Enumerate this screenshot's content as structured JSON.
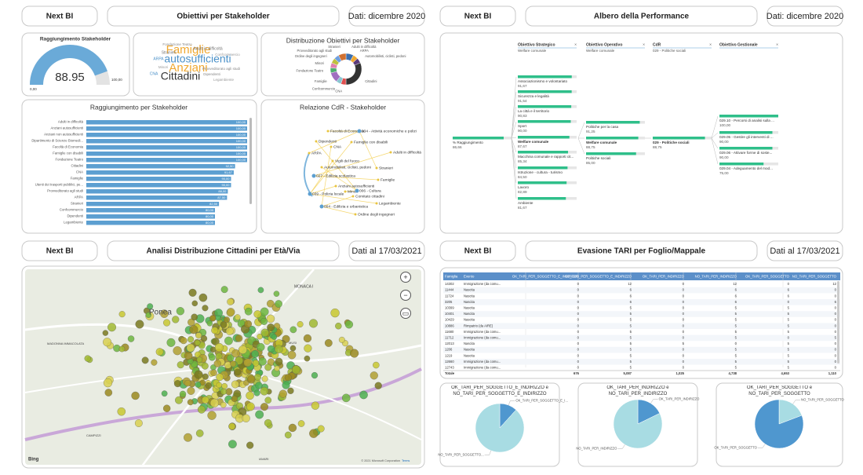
{
  "headers": [
    {
      "nav": "Next BI",
      "title": "Obiettivi per Stakeholder",
      "date": "Dati: dicembre 2020"
    },
    {
      "nav": "Next BI",
      "title": "Albero della Performance",
      "date": "Dati: dicembre 2020"
    },
    {
      "nav": "Next BI",
      "title": "Analisi Distribuzione Cittadini per Età/Via",
      "date": "Dati al 17/03/2021"
    },
    {
      "nav": "Next BI",
      "title": "Evasione TARI per Foglio/Mappale",
      "date": "Dati al 17/03/2021"
    }
  ],
  "chart_data": [
    {
      "type": "gauge",
      "title": "Raggiungimento Stakeholder",
      "value": 88.95,
      "ylim": [
        0,
        100
      ],
      "yticks": [
        {
          "value": 0,
          "label": "0,00"
        },
        {
          "value": 100,
          "label": "100,00"
        }
      ],
      "color": "#6aaad8"
    },
    {
      "type": "wordcloud",
      "words": [
        "Famiglie",
        "autosufficienti",
        "Anziani",
        "Cittadini",
        "Stranieri",
        "Adulti in difficoltà",
        "ARPA",
        "Fondazione Teatro",
        "Provveditorato agli studi",
        "Minori",
        "Legambiente",
        "CNA",
        "Dipendenti",
        "Confcommercio"
      ],
      "colors": [
        "#f0a830",
        "#4a90c8",
        "#f0a830",
        "#333333",
        "#777777",
        "#777777",
        "#4a90c8",
        "#888888",
        "#888888",
        "#999999",
        "#999999",
        "#4a90c8",
        "#888888",
        "#999999"
      ]
    },
    {
      "type": "donut",
      "title": "Distribuzione Obiettivi per Stakeholder",
      "categories": [
        "Adulti in difficoltà",
        "ARPA",
        "Automobilisti, ciclisti, pedoni",
        "Cittadini",
        "CNA",
        "Confcommercio",
        "Famiglie",
        "Fondazione Teatro",
        "Minori",
        "Ordine degli ingegneri",
        "Provveditorato agli studi",
        "Stranieri"
      ],
      "values": [
        3,
        2,
        2,
        12,
        2,
        2,
        4,
        2,
        2,
        2,
        2,
        3
      ],
      "colors": [
        "#3a6fb0",
        "#f0a830",
        "#5a3a7a",
        "#333333",
        "#e05050",
        "#8ac6d1",
        "#a070c0",
        "#50b070",
        "#e080b0",
        "#c0c040",
        "#70a0e0",
        "#d07030"
      ]
    },
    {
      "type": "bar",
      "orientation": "horizontal",
      "title": "Raggiungimento per Stakeholder",
      "categories": [
        "Adulti in difficoltà",
        "Anziani autosufficienti",
        "Anziani non autosufficienti",
        "Dipartimento di Scienze Biomedi...",
        "Facoltà di Economia",
        "Famiglie con disabili",
        "Fondazione Teatro",
        "Cittadini",
        "CNA",
        "Famiglie",
        "Utenti dei trasporti pubblici, pe...",
        "Provveditorato agli studi",
        "ARPA",
        "Stranieri",
        "Confcommercio",
        "Dipendenti",
        "Legambiente"
      ],
      "values": [
        100,
        100,
        100,
        100,
        100,
        100,
        100,
        92.5,
        91.67,
        90,
        90,
        88,
        87.5,
        82.5,
        80,
        80,
        80
      ],
      "value_labels": [
        "100,00",
        "100,00",
        "100,00",
        "100,00",
        "100,00",
        "100,00",
        "100,00",
        "92,50",
        "91,67",
        "90,00",
        "90,00",
        "88,00",
        "87,50",
        "82,50",
        "80,00",
        "80,00",
        "80,00"
      ],
      "xlim": [
        0,
        100
      ],
      "color": "#5c9fd1"
    },
    {
      "type": "network",
      "title": "Relazione CdR - Stakeholder",
      "nodes": [
        "Facoltà di Economia",
        "034 - Attività economiche e polizi",
        "Famiglie con disabili",
        "Dipendenti",
        "CNA",
        "ARPA",
        "Adulti in difficoltà",
        "Vigili del fuoco",
        "Automobilisti, ciclisti, pedoni",
        "027 - Edilizia scolastica",
        "Stranieri",
        "Famiglie",
        "Anziani autosufficienti",
        "Minori",
        "Comitato cittadini",
        "039 - Polizia locale",
        "006 - Cultura",
        "Legambiente",
        "004 - Edilizia e urbanistica",
        "Ordine degli ingegneri"
      ]
    },
    {
      "type": "decomposition_tree",
      "columns": [
        {
          "title": "Obiettivo Strategico",
          "value": "Welfare comunale"
        },
        {
          "title": "Obiettivo Operativo",
          "value": "Welfare comunale"
        },
        {
          "title": "CdR",
          "value": "029 - Politiche sociali"
        },
        {
          "title": "Obiettivo Gestionale"
        }
      ],
      "root": {
        "label": "% Raggiungimento",
        "value": 86.66,
        "value_label": "86,66"
      },
      "levels": [
        [
          {
            "label": "Associazionismo e volontariato",
            "value": 91.67,
            "value_label": "91,67"
          },
          {
            "label": "Sicurezza e legalità",
            "value": 91.54,
            "value_label": "91,54"
          },
          {
            "label": "La città e il territorio",
            "value": 90.83,
            "value_label": "90,83"
          },
          {
            "label": "Sport",
            "value": 90,
            "value_label": "90,00"
          },
          {
            "label": "Welfare comunale",
            "value": 87.67,
            "value_label": "87,67"
          },
          {
            "label": "Macchina comunale e rapporti cit...",
            "value": 85.34,
            "value_label": "85,34"
          },
          {
            "label": "Istruzione - cultura - turismo",
            "value": 84.5,
            "value_label": "84,50"
          },
          {
            "label": "Lavoro",
            "value": 82.89,
            "value_label": "82,89"
          },
          {
            "label": "Ambiente",
            "value": 81.67,
            "value_label": "81,67"
          }
        ],
        [
          {
            "label": "Politiche per la casa",
            "value": 91.25,
            "value_label": "91,25"
          },
          {
            "label": "Welfare comunale",
            "value": 88.75,
            "value_label": "88,75"
          },
          {
            "label": "Politiche sociali",
            "value": 85,
            "value_label": "85,00"
          }
        ],
        [
          {
            "label": "029 - Politiche sociali",
            "value": 88.75,
            "value_label": "88,75"
          }
        ],
        [
          {
            "label": "029.10 - Percorsi di analisi sulla ...",
            "value": 100,
            "value_label": "100,00"
          },
          {
            "label": "029.05 - Gestire gli interventi di ...",
            "value": 90,
            "value_label": "90,00"
          },
          {
            "label": "029.06 - Attivare forme di soste...",
            "value": 90,
            "value_label": "90,00"
          },
          {
            "label": "029.04 - Adeguamento del mod...",
            "value": 75,
            "value_label": "75,00"
          }
        ]
      ],
      "xlim": [
        0,
        100
      ],
      "color": "#2fbf8a"
    },
    {
      "type": "pie",
      "title": "OK_TARI_PER_SOGGETTO_E_INDIRIZZO e NO_TARI_PER_SOGGETTO_E_INDIRIZZO",
      "labels": [
        "OK_TARI_PER_SOGGETTO_E_I...",
        "NO_TARI_PER_SOGGETTO..."
      ],
      "values": [
        676,
        5087
      ],
      "colors": [
        "#4f97cf",
        "#a8dce3"
      ]
    },
    {
      "type": "pie",
      "title": "OK_TARI_PER_INDIRIZZO e NO_TARI_PER_INDIRIZZO",
      "labels": [
        "OK_TARI_PER_INDIRIZZO",
        "NO_TARI_PER_INDIRIZZO"
      ],
      "values": [
        1025,
        4738
      ],
      "colors": [
        "#4f97cf",
        "#a8dce3"
      ]
    },
    {
      "type": "pie",
      "title": "OK_TARI_PER_SOGGETTO e NO_TARI_PER_SOGGETTO",
      "labels": [
        "NO_TARI_PER_SOGGETTO",
        "OK_TARI_PER_SOGGETTO"
      ],
      "values": [
        1110,
        4653
      ],
      "colors": [
        "#a8dce3",
        "#4f97cf"
      ]
    }
  ],
  "map": {
    "labels": [
      "Ponea",
      "MONACA I",
      "MADONNA IMMACOLATA",
      "CAMPIZZI",
      "IAVARI",
      "MUSI"
    ],
    "attribution": "© 2021 Microsoft Corporation",
    "terms": "Terms",
    "logo": "Bing"
  },
  "table": {
    "columns": [
      "Famiglia",
      "Evento",
      "OK_TARI_PER_SOGGETTO_E_INDIRIZZO",
      "NO_TARI_PER_SOGGETTO_E_INDIRIZZO",
      "OK_TARI_PER_INDIRIZZO",
      "NO_TARI_PER_INDIRIZZO",
      "OK_TARI_PER_SOGGETTO",
      "NO_TARI_PER_SOGGETTO"
    ],
    "rows": [
      [
        "14302",
        "Immigrazione (da comu...",
        0,
        12,
        0,
        12,
        0,
        12
      ],
      [
        "11444",
        "Nascita",
        0,
        6,
        0,
        6,
        6,
        0
      ],
      [
        "11724",
        "Nascita",
        0,
        6,
        0,
        6,
        6,
        0
      ],
      [
        "3205",
        "Nascita",
        0,
        6,
        0,
        6,
        0,
        6
      ],
      [
        "10399",
        "Nascita",
        0,
        5,
        0,
        5,
        5,
        0
      ],
      [
        "10401",
        "Nascita",
        0,
        5,
        0,
        5,
        5,
        0
      ],
      [
        "10429",
        "Nascita",
        0,
        5,
        0,
        5,
        5,
        0
      ],
      [
        "10886",
        "Rimpatrio (da AIRE)",
        0,
        5,
        0,
        5,
        5,
        0
      ],
      [
        "11680",
        "Immigrazione (da comu...",
        0,
        5,
        0,
        5,
        5,
        0
      ],
      [
        "11712",
        "Immigrazione (da comu...",
        0,
        5,
        0,
        5,
        0,
        5
      ],
      [
        "12013",
        "Nascita",
        0,
        5,
        5,
        0,
        5,
        0
      ],
      [
        "1206",
        "Nascita",
        0,
        5,
        0,
        5,
        5,
        0
      ],
      [
        "1219",
        "Nascita",
        0,
        5,
        0,
        5,
        5,
        0
      ],
      [
        "12660",
        "Immigrazione (da comu...",
        0,
        5,
        0,
        5,
        5,
        0
      ],
      [
        "12743",
        "Immigrazione (da comu...",
        0,
        5,
        0,
        5,
        5,
        0
      ]
    ],
    "total": [
      "Totale",
      "",
      "676",
      "5,087",
      "1,025",
      "4,738",
      "4,653",
      "1,110"
    ]
  }
}
